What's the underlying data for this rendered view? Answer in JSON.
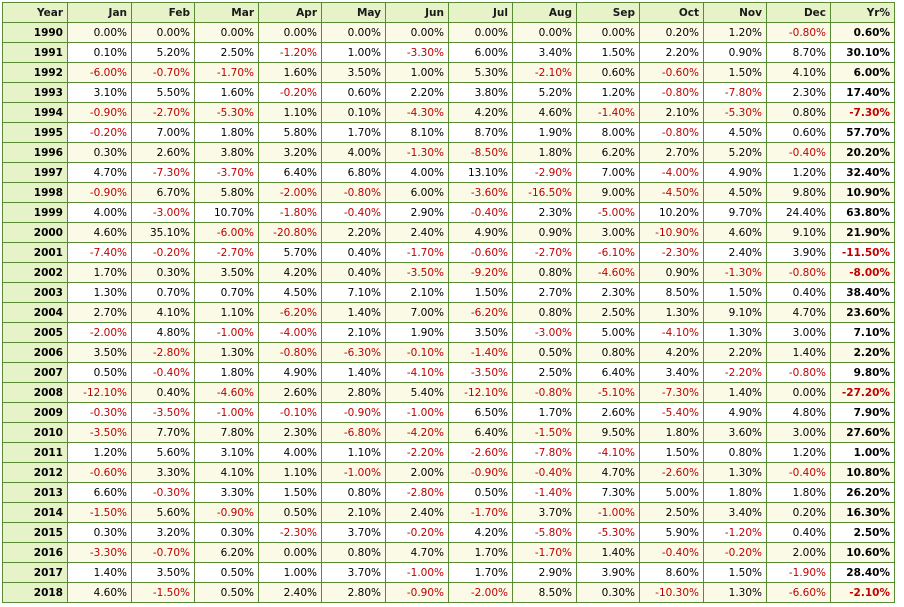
{
  "table": {
    "headers": [
      "Year",
      "Jan",
      "Feb",
      "Mar",
      "Apr",
      "May",
      "Jun",
      "Jul",
      "Aug",
      "Sep",
      "Oct",
      "Nov",
      "Dec",
      "Yr%"
    ],
    "rows": [
      [
        "1990",
        "0.00%",
        "0.00%",
        "0.00%",
        "0.00%",
        "0.00%",
        "0.00%",
        "0.00%",
        "0.00%",
        "0.00%",
        "0.20%",
        "1.20%",
        "-0.80%",
        "0.60%"
      ],
      [
        "1991",
        "0.10%",
        "5.20%",
        "2.50%",
        "-1.20%",
        "1.00%",
        "-3.30%",
        "6.00%",
        "3.40%",
        "1.50%",
        "2.20%",
        "0.90%",
        "8.70%",
        "30.10%"
      ],
      [
        "1992",
        "-6.00%",
        "-0.70%",
        "-1.70%",
        "1.60%",
        "3.50%",
        "1.00%",
        "5.30%",
        "-2.10%",
        "0.60%",
        "-0.60%",
        "1.50%",
        "4.10%",
        "6.00%"
      ],
      [
        "1993",
        "3.10%",
        "5.50%",
        "1.60%",
        "-0.20%",
        "0.60%",
        "2.20%",
        "3.80%",
        "5.20%",
        "1.20%",
        "-0.80%",
        "-7.80%",
        "2.30%",
        "17.40%"
      ],
      [
        "1994",
        "-0.90%",
        "-2.70%",
        "-5.30%",
        "1.10%",
        "0.10%",
        "-4.30%",
        "4.20%",
        "4.60%",
        "-1.40%",
        "2.10%",
        "-5.30%",
        "0.80%",
        "-7.30%"
      ],
      [
        "1995",
        "-0.20%",
        "7.00%",
        "1.80%",
        "5.80%",
        "1.70%",
        "8.10%",
        "8.70%",
        "1.90%",
        "8.00%",
        "-0.80%",
        "4.50%",
        "0.60%",
        "57.70%"
      ],
      [
        "1996",
        "0.30%",
        "2.60%",
        "3.80%",
        "3.20%",
        "4.00%",
        "-1.30%",
        "-8.50%",
        "1.80%",
        "6.20%",
        "2.70%",
        "5.20%",
        "-0.40%",
        "20.20%"
      ],
      [
        "1997",
        "4.70%",
        "-7.30%",
        "-3.70%",
        "6.40%",
        "6.80%",
        "4.00%",
        "13.10%",
        "-2.90%",
        "7.00%",
        "-4.00%",
        "4.90%",
        "1.20%",
        "32.40%"
      ],
      [
        "1998",
        "-0.90%",
        "6.70%",
        "5.80%",
        "-2.00%",
        "-0.80%",
        "6.00%",
        "-3.60%",
        "-16.50%",
        "9.00%",
        "-4.50%",
        "4.50%",
        "9.80%",
        "10.90%"
      ],
      [
        "1999",
        "4.00%",
        "-3.00%",
        "10.70%",
        "-1.80%",
        "-0.40%",
        "2.90%",
        "-0.40%",
        "2.30%",
        "-5.00%",
        "10.20%",
        "9.70%",
        "24.40%",
        "63.80%"
      ],
      [
        "2000",
        "4.60%",
        "35.10%",
        "-6.00%",
        "-20.80%",
        "2.20%",
        "2.40%",
        "4.90%",
        "0.90%",
        "3.00%",
        "-10.90%",
        "4.60%",
        "9.10%",
        "21.90%"
      ],
      [
        "2001",
        "-7.40%",
        "-0.20%",
        "-2.70%",
        "5.70%",
        "0.40%",
        "-1.70%",
        "-0.60%",
        "-2.70%",
        "-6.10%",
        "-2.30%",
        "2.40%",
        "3.90%",
        "-11.50%"
      ],
      [
        "2002",
        "1.70%",
        "0.30%",
        "3.50%",
        "4.20%",
        "0.40%",
        "-3.50%",
        "-9.20%",
        "0.80%",
        "-4.60%",
        "0.90%",
        "-1.30%",
        "-0.80%",
        "-8.00%"
      ],
      [
        "2003",
        "1.30%",
        "0.70%",
        "0.70%",
        "4.50%",
        "7.10%",
        "2.10%",
        "1.50%",
        "2.70%",
        "2.30%",
        "8.50%",
        "1.50%",
        "0.40%",
        "38.40%"
      ],
      [
        "2004",
        "2.70%",
        "4.10%",
        "1.10%",
        "-6.20%",
        "1.40%",
        "7.00%",
        "-6.20%",
        "0.80%",
        "2.50%",
        "1.30%",
        "9.10%",
        "4.70%",
        "23.60%"
      ],
      [
        "2005",
        "-2.00%",
        "4.80%",
        "-1.00%",
        "-4.00%",
        "2.10%",
        "1.90%",
        "3.50%",
        "-3.00%",
        "5.00%",
        "-4.10%",
        "1.30%",
        "3.00%",
        "7.10%"
      ],
      [
        "2006",
        "3.50%",
        "-2.80%",
        "1.30%",
        "-0.80%",
        "-6.30%",
        "-0.10%",
        "-1.40%",
        "0.50%",
        "0.80%",
        "4.20%",
        "2.20%",
        "1.40%",
        "2.20%"
      ],
      [
        "2007",
        "0.50%",
        "-0.40%",
        "1.80%",
        "4.90%",
        "1.40%",
        "-4.10%",
        "-3.50%",
        "2.50%",
        "6.40%",
        "3.40%",
        "-2.20%",
        "-0.80%",
        "9.80%"
      ],
      [
        "2008",
        "-12.10%",
        "0.40%",
        "-4.60%",
        "2.60%",
        "2.80%",
        "5.40%",
        "-12.10%",
        "-0.80%",
        "-5.10%",
        "-7.30%",
        "1.40%",
        "0.00%",
        "-27.20%"
      ],
      [
        "2009",
        "-0.30%",
        "-3.50%",
        "-1.00%",
        "-0.10%",
        "-0.90%",
        "-1.00%",
        "6.50%",
        "1.70%",
        "2.60%",
        "-5.40%",
        "4.90%",
        "4.80%",
        "7.90%"
      ],
      [
        "2010",
        "-3.50%",
        "7.70%",
        "7.80%",
        "2.30%",
        "-6.80%",
        "-4.20%",
        "6.40%",
        "-1.50%",
        "9.50%",
        "1.80%",
        "3.60%",
        "3.00%",
        "27.60%"
      ],
      [
        "2011",
        "1.20%",
        "5.60%",
        "3.10%",
        "4.00%",
        "1.10%",
        "-2.20%",
        "-2.60%",
        "-7.80%",
        "-4.10%",
        "1.50%",
        "0.80%",
        "1.20%",
        "1.00%"
      ],
      [
        "2012",
        "-0.60%",
        "3.30%",
        "4.10%",
        "1.10%",
        "-1.00%",
        "2.00%",
        "-0.90%",
        "-0.40%",
        "4.70%",
        "-2.60%",
        "1.30%",
        "-0.40%",
        "10.80%"
      ],
      [
        "2013",
        "6.60%",
        "-0.30%",
        "3.30%",
        "1.50%",
        "0.80%",
        "-2.80%",
        "0.50%",
        "-1.40%",
        "7.30%",
        "5.00%",
        "1.80%",
        "1.80%",
        "26.20%"
      ],
      [
        "2014",
        "-1.50%",
        "5.60%",
        "-0.90%",
        "0.50%",
        "2.10%",
        "2.40%",
        "-1.70%",
        "3.70%",
        "-1.00%",
        "2.50%",
        "3.40%",
        "0.20%",
        "16.30%"
      ],
      [
        "2015",
        "0.30%",
        "3.20%",
        "0.30%",
        "-2.30%",
        "3.70%",
        "-0.20%",
        "4.20%",
        "-5.80%",
        "-5.30%",
        "5.90%",
        "-1.20%",
        "0.40%",
        "2.50%"
      ],
      [
        "2016",
        "-3.30%",
        "-0.70%",
        "6.20%",
        "0.00%",
        "0.80%",
        "4.70%",
        "1.70%",
        "-1.70%",
        "1.40%",
        "-0.40%",
        "-0.20%",
        "2.00%",
        "10.60%"
      ],
      [
        "2017",
        "1.40%",
        "3.50%",
        "0.50%",
        "1.00%",
        "3.70%",
        "-1.00%",
        "1.70%",
        "2.90%",
        "3.90%",
        "8.60%",
        "1.50%",
        "-1.90%",
        "28.40%"
      ],
      [
        "2018",
        "4.60%",
        "-1.50%",
        "0.50%",
        "2.40%",
        "2.80%",
        "-0.90%",
        "-2.00%",
        "8.50%",
        "0.30%",
        "-10.30%",
        "1.30%",
        "-6.60%",
        "-2.10%"
      ]
    ]
  },
  "colors": {
    "header_bg": "#e6f2c8",
    "row_bg": "#fafae6",
    "row_alt_bg": "#ffffff",
    "border": "#5a8a35",
    "negative": "#c00000",
    "positive": "#000000"
  }
}
